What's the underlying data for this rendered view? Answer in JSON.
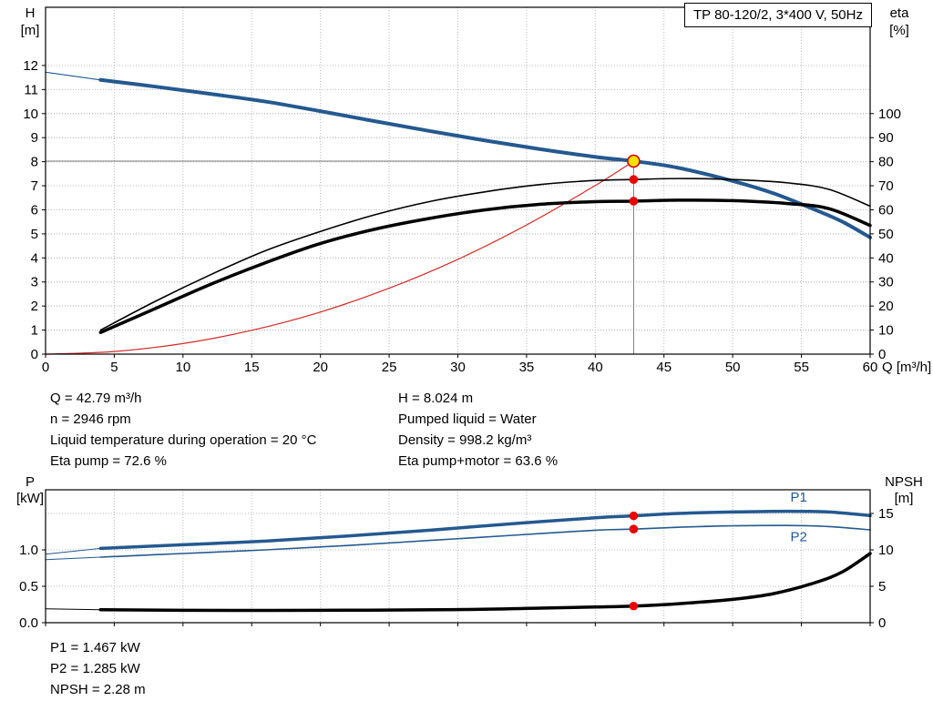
{
  "info_top": {
    "left": [
      "Q = 42.79 m³/h",
      "n = 2946 rpm",
      "Liquid temperature during operation = 20 °C",
      "Eta pump = 72.6 %"
    ],
    "right": [
      "H = 8.024 m",
      "Pumped liquid = Water",
      "Density = 998.2 kg/m³",
      "Eta pump+motor = 63.6 %"
    ]
  },
  "info_bottom": [
    "P1 = 1.467 kW",
    "P2 = 1.285 kW",
    "NPSH = 2.28 m"
  ],
  "colors": {
    "curve_blue": "#24598f",
    "curve_black": "#000000",
    "curve_red": "#d02a2a",
    "marker_red": "#e80000",
    "marker_yellow": "#ffe100",
    "marker_ring": "#cc0000",
    "grid": "#b8b8b8",
    "crosshair": "#7a7a7a",
    "axis": "#000000"
  },
  "chart_data": [
    {
      "type": "line",
      "name": "qh-eta-chart",
      "title": "TP 80-120/2, 3*400 V, 50Hz",
      "x_axis": {
        "label": "Q [m³/h]",
        "min": 0,
        "max": 60,
        "ticks": [
          0,
          5,
          10,
          15,
          20,
          25,
          30,
          35,
          40,
          45,
          50,
          55,
          60
        ],
        "tick_labels": [
          "0",
          "5",
          "10",
          "15",
          "20",
          "25",
          "30",
          "35",
          "40",
          "45",
          "50",
          "55",
          "60"
        ]
      },
      "y_left": {
        "title": "H",
        "unit": "[m]",
        "min": 0,
        "max": 14.42,
        "ticks": [
          0,
          1,
          2,
          3,
          4,
          5,
          6,
          7,
          8,
          9,
          10,
          11,
          12
        ],
        "tick_labels": [
          "0",
          "1",
          "2",
          "3",
          "4",
          "5",
          "6",
          "7",
          "8",
          "9",
          "10",
          "11",
          "12"
        ]
      },
      "y_right": {
        "title": "eta",
        "unit": "[%]",
        "min": 0,
        "max": 144.2,
        "ticks": [
          0,
          10,
          20,
          30,
          40,
          50,
          60,
          70,
          80,
          90,
          100
        ],
        "tick_labels": [
          "0",
          "10",
          "20",
          "30",
          "40",
          "50",
          "60",
          "70",
          "80",
          "90",
          "100"
        ]
      },
      "series": [
        {
          "name": "system-curve",
          "axis": "left",
          "color": "#d02a2a",
          "width": 1.2,
          "points": [
            [
              0,
              0
            ],
            [
              5,
              0.11
            ],
            [
              10,
              0.44
            ],
            [
              15,
              0.99
            ],
            [
              20,
              1.75
            ],
            [
              25,
              2.74
            ],
            [
              30,
              3.94
            ],
            [
              35,
              5.37
            ],
            [
              40,
              7.01
            ],
            [
              42.79,
              8.024
            ]
          ]
        },
        {
          "name": "head-curve-leadin",
          "axis": "left",
          "color": "#24598f",
          "width": 1.2,
          "points": [
            [
              0,
              11.72
            ],
            [
              4,
              11.4
            ]
          ]
        },
        {
          "name": "head-curve",
          "axis": "left",
          "color": "#24598f",
          "width": 4,
          "points": [
            [
              4,
              11.4
            ],
            [
              8,
              11.12
            ],
            [
              12,
              10.82
            ],
            [
              16,
              10.5
            ],
            [
              20,
              10.1
            ],
            [
              24,
              9.68
            ],
            [
              28,
              9.27
            ],
            [
              32,
              8.88
            ],
            [
              36,
              8.52
            ],
            [
              40,
              8.2
            ],
            [
              42.79,
              8.024
            ],
            [
              46,
              7.75
            ],
            [
              50,
              7.2
            ],
            [
              53,
              6.68
            ],
            [
              56,
              6.0
            ],
            [
              58,
              5.5
            ],
            [
              60,
              4.85
            ]
          ]
        },
        {
          "name": "eta-pump-curve",
          "axis": "right",
          "color": "#000000",
          "width": 1.6,
          "points": [
            [
              4,
              10
            ],
            [
              8,
              22
            ],
            [
              12,
              33
            ],
            [
              16,
              43
            ],
            [
              20,
              51
            ],
            [
              24,
              58
            ],
            [
              28,
              63.5
            ],
            [
              32,
              67.5
            ],
            [
              36,
              70.5
            ],
            [
              40,
              72.2
            ],
            [
              42.79,
              72.6
            ],
            [
              46,
              73.0
            ],
            [
              50,
              72.6
            ],
            [
              54,
              71.2
            ],
            [
              57,
              68.5
            ],
            [
              60,
              61.5
            ]
          ]
        },
        {
          "name": "eta-pump-motor-curve",
          "axis": "right",
          "color": "#000000",
          "width": 3.5,
          "points": [
            [
              4,
              9
            ],
            [
              8,
              19
            ],
            [
              12,
              29
            ],
            [
              16,
              38
            ],
            [
              20,
              46
            ],
            [
              24,
              52
            ],
            [
              28,
              56.5
            ],
            [
              32,
              60
            ],
            [
              36,
              62.3
            ],
            [
              40,
              63.4
            ],
            [
              42.79,
              63.6
            ],
            [
              46,
              64.0
            ],
            [
              50,
              63.8
            ],
            [
              54,
              62.6
            ],
            [
              57,
              60.5
            ],
            [
              60,
              53.5
            ]
          ]
        }
      ],
      "crosshair": {
        "q": 42.79,
        "h": 8.024
      },
      "markers": [
        {
          "name": "duty-point-marker",
          "axis": "left",
          "q": 42.79,
          "v": 8.024,
          "r": 6.5,
          "fill": "#ffe100",
          "stroke": "#cc0000"
        },
        {
          "name": "eta-pump-point-marker",
          "axis": "right",
          "q": 42.79,
          "v": 72.6,
          "r": 4.8,
          "fill": "#e80000"
        },
        {
          "name": "eta-pump-motor-point-marker",
          "axis": "right",
          "q": 42.79,
          "v": 63.6,
          "r": 4.8,
          "fill": "#e80000"
        }
      ],
      "annotations": []
    },
    {
      "type": "line",
      "name": "power-npsh-chart",
      "title": "",
      "x_axis": {
        "label": "",
        "min": 0,
        "max": 60,
        "ticks": [
          0,
          5,
          10,
          15,
          20,
          25,
          30,
          35,
          40,
          45,
          50,
          55,
          60
        ],
        "tick_labels": null
      },
      "y_left": {
        "title": "P",
        "unit": "[kW]",
        "min": 0,
        "max": 1.825,
        "ticks": [
          0,
          0.5,
          1
        ],
        "tick_labels": [
          "0.0",
          "0.5",
          "1.0"
        ]
      },
      "y_right": {
        "title": "NPSH",
        "unit": "[m]",
        "min": 0,
        "max": 18.25,
        "ticks": [
          0,
          5,
          10,
          15
        ],
        "tick_labels": [
          "0",
          "5",
          "10",
          "15"
        ]
      },
      "series": [
        {
          "name": "p1-curve-leadin",
          "axis": "left",
          "color": "#24598f",
          "width": 1,
          "points": [
            [
              0,
              0.94
            ],
            [
              4,
              1.02
            ]
          ]
        },
        {
          "name": "p1-curve",
          "axis": "left",
          "color": "#24598f",
          "width": 3.5,
          "points": [
            [
              4,
              1.02
            ],
            [
              10,
              1.07
            ],
            [
              16,
              1.12
            ],
            [
              22,
              1.19
            ],
            [
              28,
              1.27
            ],
            [
              34,
              1.36
            ],
            [
              40,
              1.44
            ],
            [
              42.79,
              1.467
            ],
            [
              46,
              1.5
            ],
            [
              50,
              1.52
            ],
            [
              54,
              1.53
            ],
            [
              57,
              1.52
            ],
            [
              60,
              1.47
            ]
          ]
        },
        {
          "name": "p2-curve-leadin",
          "axis": "left",
          "color": "#24598f",
          "width": 1,
          "points": [
            [
              0,
              0.865
            ],
            [
              4,
              0.9
            ]
          ]
        },
        {
          "name": "p2-curve",
          "axis": "left",
          "color": "#24598f",
          "width": 1.6,
          "points": [
            [
              4,
              0.9
            ],
            [
              10,
              0.95
            ],
            [
              16,
              1.0
            ],
            [
              22,
              1.06
            ],
            [
              28,
              1.13
            ],
            [
              34,
              1.2
            ],
            [
              40,
              1.27
            ],
            [
              42.79,
              1.285
            ],
            [
              46,
              1.31
            ],
            [
              50,
              1.33
            ],
            [
              54,
              1.335
            ],
            [
              57,
              1.32
            ],
            [
              60,
              1.275
            ]
          ]
        },
        {
          "name": "npsh-curve-leadin",
          "axis": "right",
          "color": "#000000",
          "width": 1,
          "points": [
            [
              0,
              1.9
            ],
            [
              4,
              1.78
            ]
          ]
        },
        {
          "name": "npsh-curve",
          "axis": "right",
          "color": "#000000",
          "width": 3.5,
          "points": [
            [
              4,
              1.78
            ],
            [
              10,
              1.7
            ],
            [
              20,
              1.7
            ],
            [
              30,
              1.8
            ],
            [
              36,
              2.0
            ],
            [
              40,
              2.15
            ],
            [
              42.79,
              2.28
            ],
            [
              46,
              2.6
            ],
            [
              50,
              3.2
            ],
            [
              53,
              4.0
            ],
            [
              56,
              5.5
            ],
            [
              58,
              7.0
            ],
            [
              60,
              9.5
            ]
          ]
        }
      ],
      "crosshair": null,
      "markers": [
        {
          "name": "p1-point-marker",
          "axis": "left",
          "q": 42.79,
          "v": 1.467,
          "r": 4.8,
          "fill": "#e80000"
        },
        {
          "name": "p2-point-marker",
          "axis": "left",
          "q": 42.79,
          "v": 1.285,
          "r": 4.8,
          "fill": "#e80000"
        },
        {
          "name": "npsh-point-marker",
          "axis": "right",
          "q": 42.79,
          "v": 2.28,
          "r": 4.8,
          "fill": "#e80000"
        }
      ],
      "annotations": [
        {
          "text": "P1",
          "axis": "left",
          "q": 54.2,
          "v": 1.66,
          "color": "#24598f"
        },
        {
          "text": "P2",
          "axis": "left",
          "q": 54.2,
          "v": 1.12,
          "color": "#24598f"
        }
      ]
    }
  ]
}
